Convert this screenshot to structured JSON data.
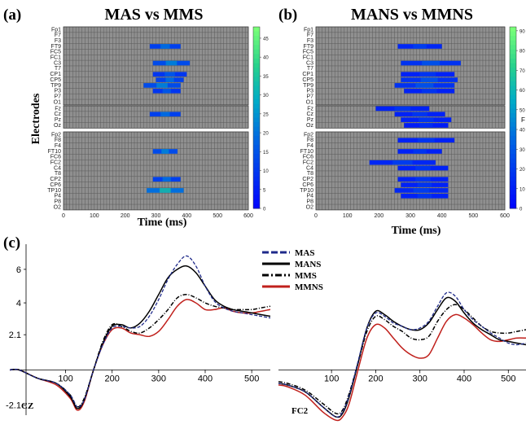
{
  "panel_a": {
    "label": "(a)",
    "title": "MAS vs MMS",
    "ylabel": "Electrodes",
    "xlabel": "Time (ms)",
    "xticks": [
      "0",
      "100",
      "200",
      "300",
      "400",
      "500",
      "600"
    ],
    "colorbar_ticks": [
      "0",
      "5",
      "10",
      "15",
      "20",
      "25",
      "30",
      "35",
      "40",
      "45"
    ],
    "groups": [
      [
        "Fp1",
        "F7",
        "F3",
        "FT9",
        "FC5",
        "FC1",
        "C3",
        "T7",
        "CP1",
        "CP5",
        "TP9",
        "P3",
        "P7",
        "O1"
      ],
      [
        "Fz",
        "Cz",
        "Pz",
        "Oz"
      ],
      [
        "Fp2",
        "F8",
        "F4",
        "FT10",
        "FC6",
        "FC2",
        "C4",
        "T8",
        "CP2",
        "CP6",
        "TP10",
        "P4",
        "P8",
        "O2"
      ]
    ]
  },
  "panel_b": {
    "label": "(b)",
    "title": "MANS vs MMNS",
    "xlabel": "Time (ms)",
    "xticks": [
      "0",
      "100",
      "200",
      "300",
      "400",
      "500",
      "600"
    ],
    "colorbar_ticks": [
      "0",
      "10",
      "20",
      "30",
      "40",
      "50",
      "60",
      "70",
      "80",
      "90"
    ],
    "colorbar_label": "F",
    "groups": [
      [
        "Fp1",
        "F7",
        "F3",
        "FT9",
        "FC5",
        "FC1",
        "C3",
        "T7",
        "CP1",
        "CP5",
        "TP9",
        "P3",
        "P7",
        "O1"
      ],
      [
        "Fz",
        "Cz",
        "Pz",
        "Oz"
      ],
      [
        "Fp2",
        "F8",
        "F4",
        "FT10",
        "FC6",
        "FC2",
        "C4",
        "T8",
        "CP2",
        "CP6",
        "TP10",
        "P4",
        "P8",
        "O2"
      ]
    ]
  },
  "panel_c": {
    "label": "(c)",
    "legend": [
      {
        "name": "MAS",
        "color": "#1f2a8a",
        "style": "dashed"
      },
      {
        "name": "MANS",
        "color": "#000000",
        "style": "solid"
      },
      {
        "name": "MMS",
        "color": "#000000",
        "style": "dashdot"
      },
      {
        "name": "MMNS",
        "color": "#c0201c",
        "style": "solid"
      }
    ],
    "yticks": [
      "6",
      "4",
      "2.1",
      "-2.1"
    ]
  },
  "chart_data": [
    {
      "type": "heatmap",
      "title": "MAS vs MMS",
      "xlabel": "Time (ms)",
      "ylabel": "Electrodes",
      "xlim": [
        0,
        600
      ],
      "clim": [
        0,
        48
      ],
      "significant_ranges": {
        "FT9": [
          [
            280,
            380,
            12
          ]
        ],
        "C3": [
          [
            290,
            410,
            14
          ]
        ],
        "CP1": [
          [
            290,
            400,
            10
          ]
        ],
        "CP5": [
          [
            300,
            390,
            12
          ]
        ],
        "TP9": [
          [
            260,
            380,
            14
          ]
        ],
        "P3": [
          [
            290,
            380,
            10
          ]
        ],
        "Cz": [
          [
            280,
            380,
            12
          ]
        ],
        "FT10": [
          [
            290,
            370,
            14
          ]
        ],
        "CP2": [
          [
            290,
            380,
            12
          ]
        ],
        "TP10": [
          [
            270,
            390,
            20
          ]
        ]
      }
    },
    {
      "type": "heatmap",
      "title": "MANS vs MMNS",
      "xlabel": "Time (ms)",
      "xlim": [
        0,
        600
      ],
      "clim": [
        0,
        92
      ],
      "significant_ranges": {
        "FT9": [
          [
            260,
            400,
            14
          ]
        ],
        "C3": [
          [
            270,
            460,
            18
          ]
        ],
        "CP1": [
          [
            270,
            440,
            12
          ]
        ],
        "CP5": [
          [
            270,
            450,
            18
          ]
        ],
        "TP9": [
          [
            250,
            440,
            18
          ]
        ],
        "P3": [
          [
            280,
            440,
            12
          ]
        ],
        "Fz": [
          [
            190,
            360,
            12
          ]
        ],
        "Cz": [
          [
            250,
            410,
            12
          ]
        ],
        "Pz": [
          [
            270,
            430,
            12
          ]
        ],
        "Oz": [
          [
            280,
            420,
            10
          ]
        ],
        "F8": [
          [
            260,
            440,
            12
          ]
        ],
        "FT10": [
          [
            260,
            400,
            12
          ]
        ],
        "FC2": [
          [
            170,
            380,
            14
          ]
        ],
        "C4": [
          [
            260,
            420,
            12
          ]
        ],
        "CP2": [
          [
            260,
            420,
            12
          ]
        ],
        "CP6": [
          [
            270,
            420,
            12
          ]
        ],
        "TP10": [
          [
            250,
            420,
            14
          ]
        ],
        "P4": [
          [
            270,
            420,
            12
          ]
        ]
      }
    },
    {
      "type": "line",
      "title": "",
      "panel_label": "CZ",
      "xticks": [
        "100",
        "200",
        "300",
        "400",
        "500"
      ],
      "yticks": [
        "6",
        "4",
        "2.1",
        "-2.1"
      ],
      "xlim": [
        -20,
        540
      ],
      "ylim": [
        -2.7,
        7.5
      ],
      "series": [
        {
          "name": "MAS",
          "x": [
            -20,
            0,
            40,
            80,
            110,
            125,
            140,
            160,
            180,
            200,
            220,
            240,
            260,
            280,
            300,
            320,
            340,
            360,
            380,
            400,
            420,
            440,
            460,
            480,
            500,
            520,
            540
          ],
          "y": [
            0,
            0,
            -0.5,
            -0.8,
            -1.5,
            -2.2,
            -1.8,
            0,
            1.5,
            2.5,
            2.6,
            2.5,
            2.6,
            3.2,
            4.2,
            5.4,
            6.3,
            6.8,
            6.2,
            5.0,
            4.1,
            3.7,
            3.5,
            3.4,
            3.3,
            3.2,
            3.1
          ]
        },
        {
          "name": "MANS",
          "x": [
            -20,
            0,
            40,
            80,
            110,
            125,
            140,
            160,
            180,
            200,
            220,
            240,
            260,
            280,
            300,
            320,
            340,
            360,
            380,
            400,
            420,
            440,
            460,
            480,
            500,
            520,
            540
          ],
          "y": [
            0,
            0,
            -0.5,
            -0.8,
            -1.6,
            -2.3,
            -1.8,
            0,
            1.6,
            2.6,
            2.7,
            2.5,
            2.8,
            3.5,
            4.5,
            5.5,
            6.0,
            6.2,
            5.8,
            5.0,
            4.2,
            3.8,
            3.6,
            3.5,
            3.4,
            3.3,
            3.2
          ]
        },
        {
          "name": "MMS",
          "x": [
            -20,
            0,
            40,
            80,
            110,
            125,
            140,
            160,
            180,
            200,
            220,
            240,
            260,
            280,
            300,
            320,
            340,
            360,
            380,
            400,
            420,
            440,
            460,
            480,
            500,
            520,
            540
          ],
          "y": [
            0,
            0,
            -0.5,
            -0.8,
            -1.5,
            -2.2,
            -1.7,
            0,
            1.7,
            2.7,
            2.6,
            2.3,
            2.2,
            2.5,
            3.0,
            3.6,
            4.3,
            4.5,
            4.3,
            4.0,
            3.8,
            3.7,
            3.6,
            3.6,
            3.6,
            3.7,
            3.8
          ]
        },
        {
          "name": "MMNS",
          "x": [
            -20,
            0,
            40,
            80,
            110,
            125,
            140,
            160,
            180,
            200,
            220,
            240,
            260,
            280,
            300,
            320,
            340,
            360,
            380,
            400,
            420,
            440,
            460,
            480,
            500,
            520,
            540
          ],
          "y": [
            0,
            0,
            -0.5,
            -0.9,
            -1.7,
            -2.4,
            -1.9,
            0,
            1.5,
            2.4,
            2.5,
            2.2,
            2.1,
            2.0,
            2.3,
            3.0,
            3.8,
            4.2,
            4.0,
            3.6,
            3.6,
            3.7,
            3.5,
            3.4,
            3.4,
            3.5,
            3.6
          ]
        }
      ]
    },
    {
      "type": "line",
      "title": "",
      "panel_label": "FC2",
      "xticks": [
        "100",
        "200",
        "300",
        "400",
        "500"
      ],
      "xlim": [
        -20,
        540
      ],
      "ylim": [
        -2.7,
        7.5
      ],
      "series": [
        {
          "name": "MAS",
          "x": [
            -20,
            0,
            40,
            80,
            110,
            125,
            140,
            160,
            180,
            200,
            220,
            240,
            260,
            280,
            300,
            320,
            340,
            360,
            380,
            400,
            420,
            440,
            460,
            480,
            500,
            520,
            540
          ],
          "y": [
            -0.8,
            -0.9,
            -1.3,
            -2.2,
            -2.8,
            -2.5,
            -1.5,
            0.5,
            2.5,
            3.4,
            3.2,
            2.8,
            2.6,
            2.4,
            2.5,
            2.9,
            3.8,
            4.6,
            4.4,
            3.6,
            3.0,
            2.6,
            2.2,
            1.9,
            1.6,
            1.5,
            1.6
          ]
        },
        {
          "name": "MANS",
          "x": [
            -20,
            0,
            40,
            80,
            110,
            125,
            140,
            160,
            180,
            200,
            220,
            240,
            260,
            280,
            300,
            320,
            340,
            360,
            380,
            400,
            420,
            440,
            460,
            480,
            500,
            520,
            540
          ],
          "y": [
            -0.8,
            -0.9,
            -1.3,
            -2.2,
            -2.8,
            -2.6,
            -1.6,
            0.4,
            2.5,
            3.5,
            3.3,
            2.9,
            2.6,
            2.4,
            2.4,
            2.8,
            3.6,
            4.3,
            4.1,
            3.4,
            2.8,
            2.4,
            2.1,
            1.8,
            1.7,
            1.6,
            1.5
          ]
        },
        {
          "name": "MMS",
          "x": [
            -20,
            0,
            40,
            80,
            110,
            125,
            140,
            160,
            180,
            200,
            220,
            240,
            260,
            280,
            300,
            320,
            340,
            360,
            380,
            400,
            420,
            440,
            460,
            480,
            500,
            520,
            540
          ],
          "y": [
            -0.7,
            -0.8,
            -1.2,
            -2.0,
            -2.6,
            -2.4,
            -1.4,
            0.4,
            2.3,
            3.2,
            3.0,
            2.6,
            2.3,
            1.9,
            1.8,
            2.0,
            2.9,
            3.6,
            3.9,
            3.6,
            3.1,
            2.6,
            2.3,
            2.2,
            2.2,
            2.3,
            2.4
          ]
        },
        {
          "name": "MMNS",
          "x": [
            -20,
            0,
            40,
            80,
            110,
            125,
            140,
            160,
            180,
            200,
            220,
            240,
            260,
            280,
            300,
            320,
            340,
            360,
            380,
            400,
            420,
            440,
            460,
            480,
            500,
            520,
            540
          ],
          "y": [
            -0.9,
            -1.0,
            -1.5,
            -2.5,
            -3.0,
            -2.8,
            -2.0,
            0.0,
            1.9,
            2.7,
            2.5,
            1.9,
            1.3,
            0.9,
            0.7,
            0.9,
            1.9,
            2.9,
            3.3,
            3.1,
            2.7,
            2.2,
            1.8,
            1.7,
            1.8,
            1.9,
            1.9
          ]
        }
      ]
    }
  ]
}
